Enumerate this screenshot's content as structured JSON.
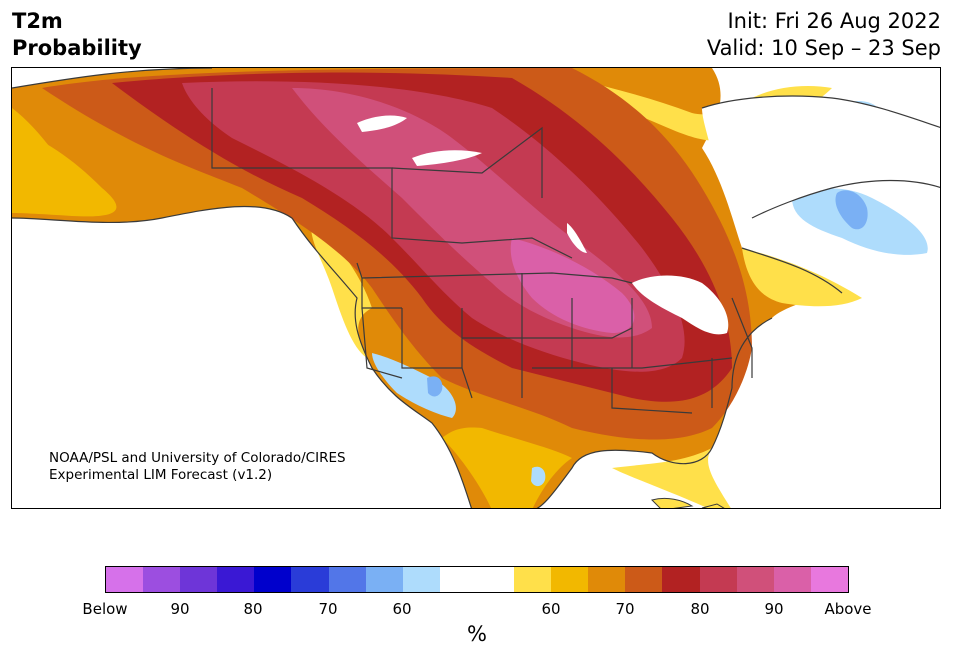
{
  "title": {
    "left_line1": "T2m",
    "left_line2": "Probability",
    "right_line1": "Init: Fri 26 Aug 2022",
    "right_line2": "Valid: 10 Sep – 23 Sep"
  },
  "credit": {
    "line1": "NOAA/PSL and University of Colorado/CIRES",
    "line2": "Experimental LIM Forecast (v1.2)"
  },
  "colorbar": {
    "colors": [
      "#d671ea",
      "#9c4ee0",
      "#6e35d8",
      "#3a18d4",
      "#0000cc",
      "#2a3cd8",
      "#5276e8",
      "#7ab0f4",
      "#aedcfc",
      "#ffffff",
      "#ffffff",
      "#ffe04a",
      "#f2b800",
      "#e08a08",
      "#cc5a18",
      "#b22222",
      "#c43a52",
      "#d0507a",
      "#da60a8",
      "#e878de"
    ],
    "tick_labels": [
      "Below",
      "90",
      "80",
      "70",
      "60",
      "60",
      "70",
      "80",
      "90",
      "Above"
    ],
    "unit": "%"
  },
  "map": {
    "ocean": "#ffffff",
    "boundary_color": "#3a3a3a"
  }
}
